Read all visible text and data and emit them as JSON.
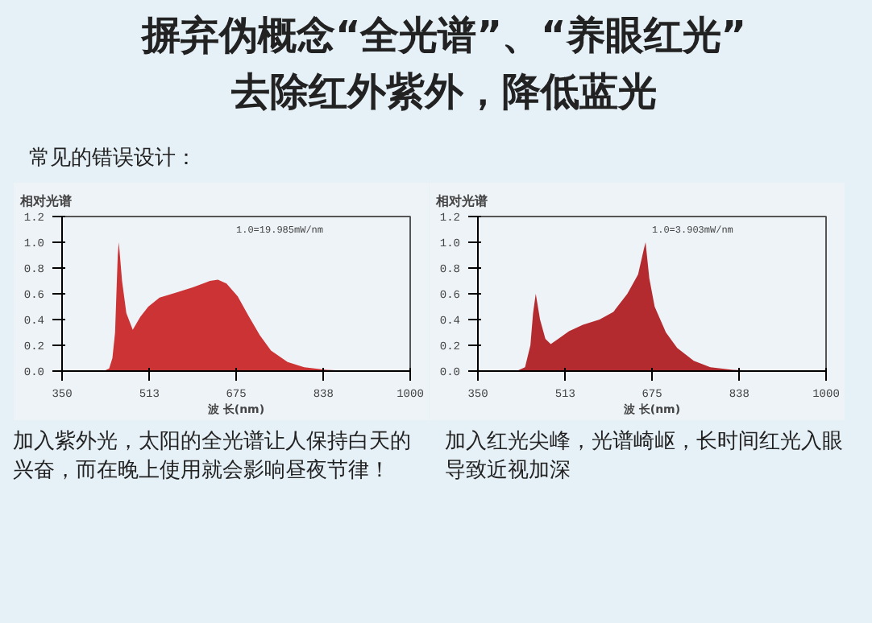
{
  "chart_data": [
    {
      "type": "area",
      "title": "摒弃伪概念“全光谱”、“养眼红光”",
      "subtitle": "去除红外紫外，降低蓝光",
      "xlabel": "波 长(nm)",
      "ylabel": "相对光谱",
      "annotations": [
        "1.0=19.985mW/nm",
        "加入紫外光，太阳的全光谱让人保持白天的兴奋，而在晚上使用就会影响昼夜节律！",
        "常见的错误设计："
      ],
      "x": [
        350,
        428,
        438,
        444,
        449,
        454,
        456,
        462,
        470,
        482,
        496,
        511,
        532,
        563,
        594,
        626,
        641,
        657,
        678,
        698,
        719,
        740,
        771,
        802,
        844,
        896,
        1000
      ],
      "series": [
        {
          "color": "#c8282a",
          "values": [
            0,
            0,
            0.02,
            0.1,
            0.3,
            0.9,
            1.0,
            0.7,
            0.45,
            0.32,
            0.42,
            0.5,
            0.57,
            0.61,
            0.65,
            0.7,
            0.71,
            0.68,
            0.58,
            0.43,
            0.28,
            0.16,
            0.07,
            0.03,
            0.01,
            0,
            0
          ]
        }
      ],
      "xlim": [
        350,
        1000
      ],
      "xticks": [
        350,
        513,
        675,
        838,
        1000
      ],
      "ylim": [
        0,
        1.2
      ],
      "yticks": [
        {
          "value": 0,
          "label": "0.0"
        },
        {
          "value": 0.2,
          "label": "0.2"
        },
        {
          "value": 0.4,
          "label": "0.4"
        },
        {
          "value": 0.6,
          "label": "0.6"
        },
        {
          "value": 0.8,
          "label": "0.8"
        },
        {
          "value": 1.0,
          "label": "1.0"
        },
        {
          "value": 1.2,
          "label": "1.2"
        }
      ],
      "grid": false
    },
    {
      "type": "area",
      "xlabel": "波 长(nm)",
      "ylabel": "相对光谱",
      "annotations": [
        "1.0=3.903mW/nm",
        "加入红光尖峰，光谱崎岖，长时间红光入眼导致近视加深"
      ],
      "x": [
        350,
        422,
        438,
        448,
        453,
        458,
        466,
        476,
        486,
        500,
        520,
        546,
        577,
        603,
        629,
        649,
        660,
        663,
        670,
        680,
        701,
        722,
        753,
        784,
        826,
        887,
        1000
      ],
      "series": [
        {
          "color": "#b02024",
          "values": [
            0,
            0,
            0.03,
            0.2,
            0.45,
            0.6,
            0.4,
            0.25,
            0.21,
            0.25,
            0.31,
            0.36,
            0.4,
            0.46,
            0.6,
            0.75,
            0.95,
            1.0,
            0.72,
            0.5,
            0.3,
            0.18,
            0.08,
            0.03,
            0.01,
            0,
            0
          ]
        }
      ],
      "xlim": [
        350,
        1000
      ],
      "xticks": [
        350,
        513,
        675,
        838,
        1000
      ],
      "ylim": [
        0,
        1.2
      ],
      "yticks": [
        {
          "value": 0,
          "label": "0.0"
        },
        {
          "value": 0.2,
          "label": "0.2"
        },
        {
          "value": 0.4,
          "label": "0.4"
        },
        {
          "value": 0.6,
          "label": "0.6"
        },
        {
          "value": 0.8,
          "label": "0.8"
        },
        {
          "value": 1.0,
          "label": "1.0"
        },
        {
          "value": 1.2,
          "label": "1.2"
        }
      ],
      "grid": false
    }
  ]
}
